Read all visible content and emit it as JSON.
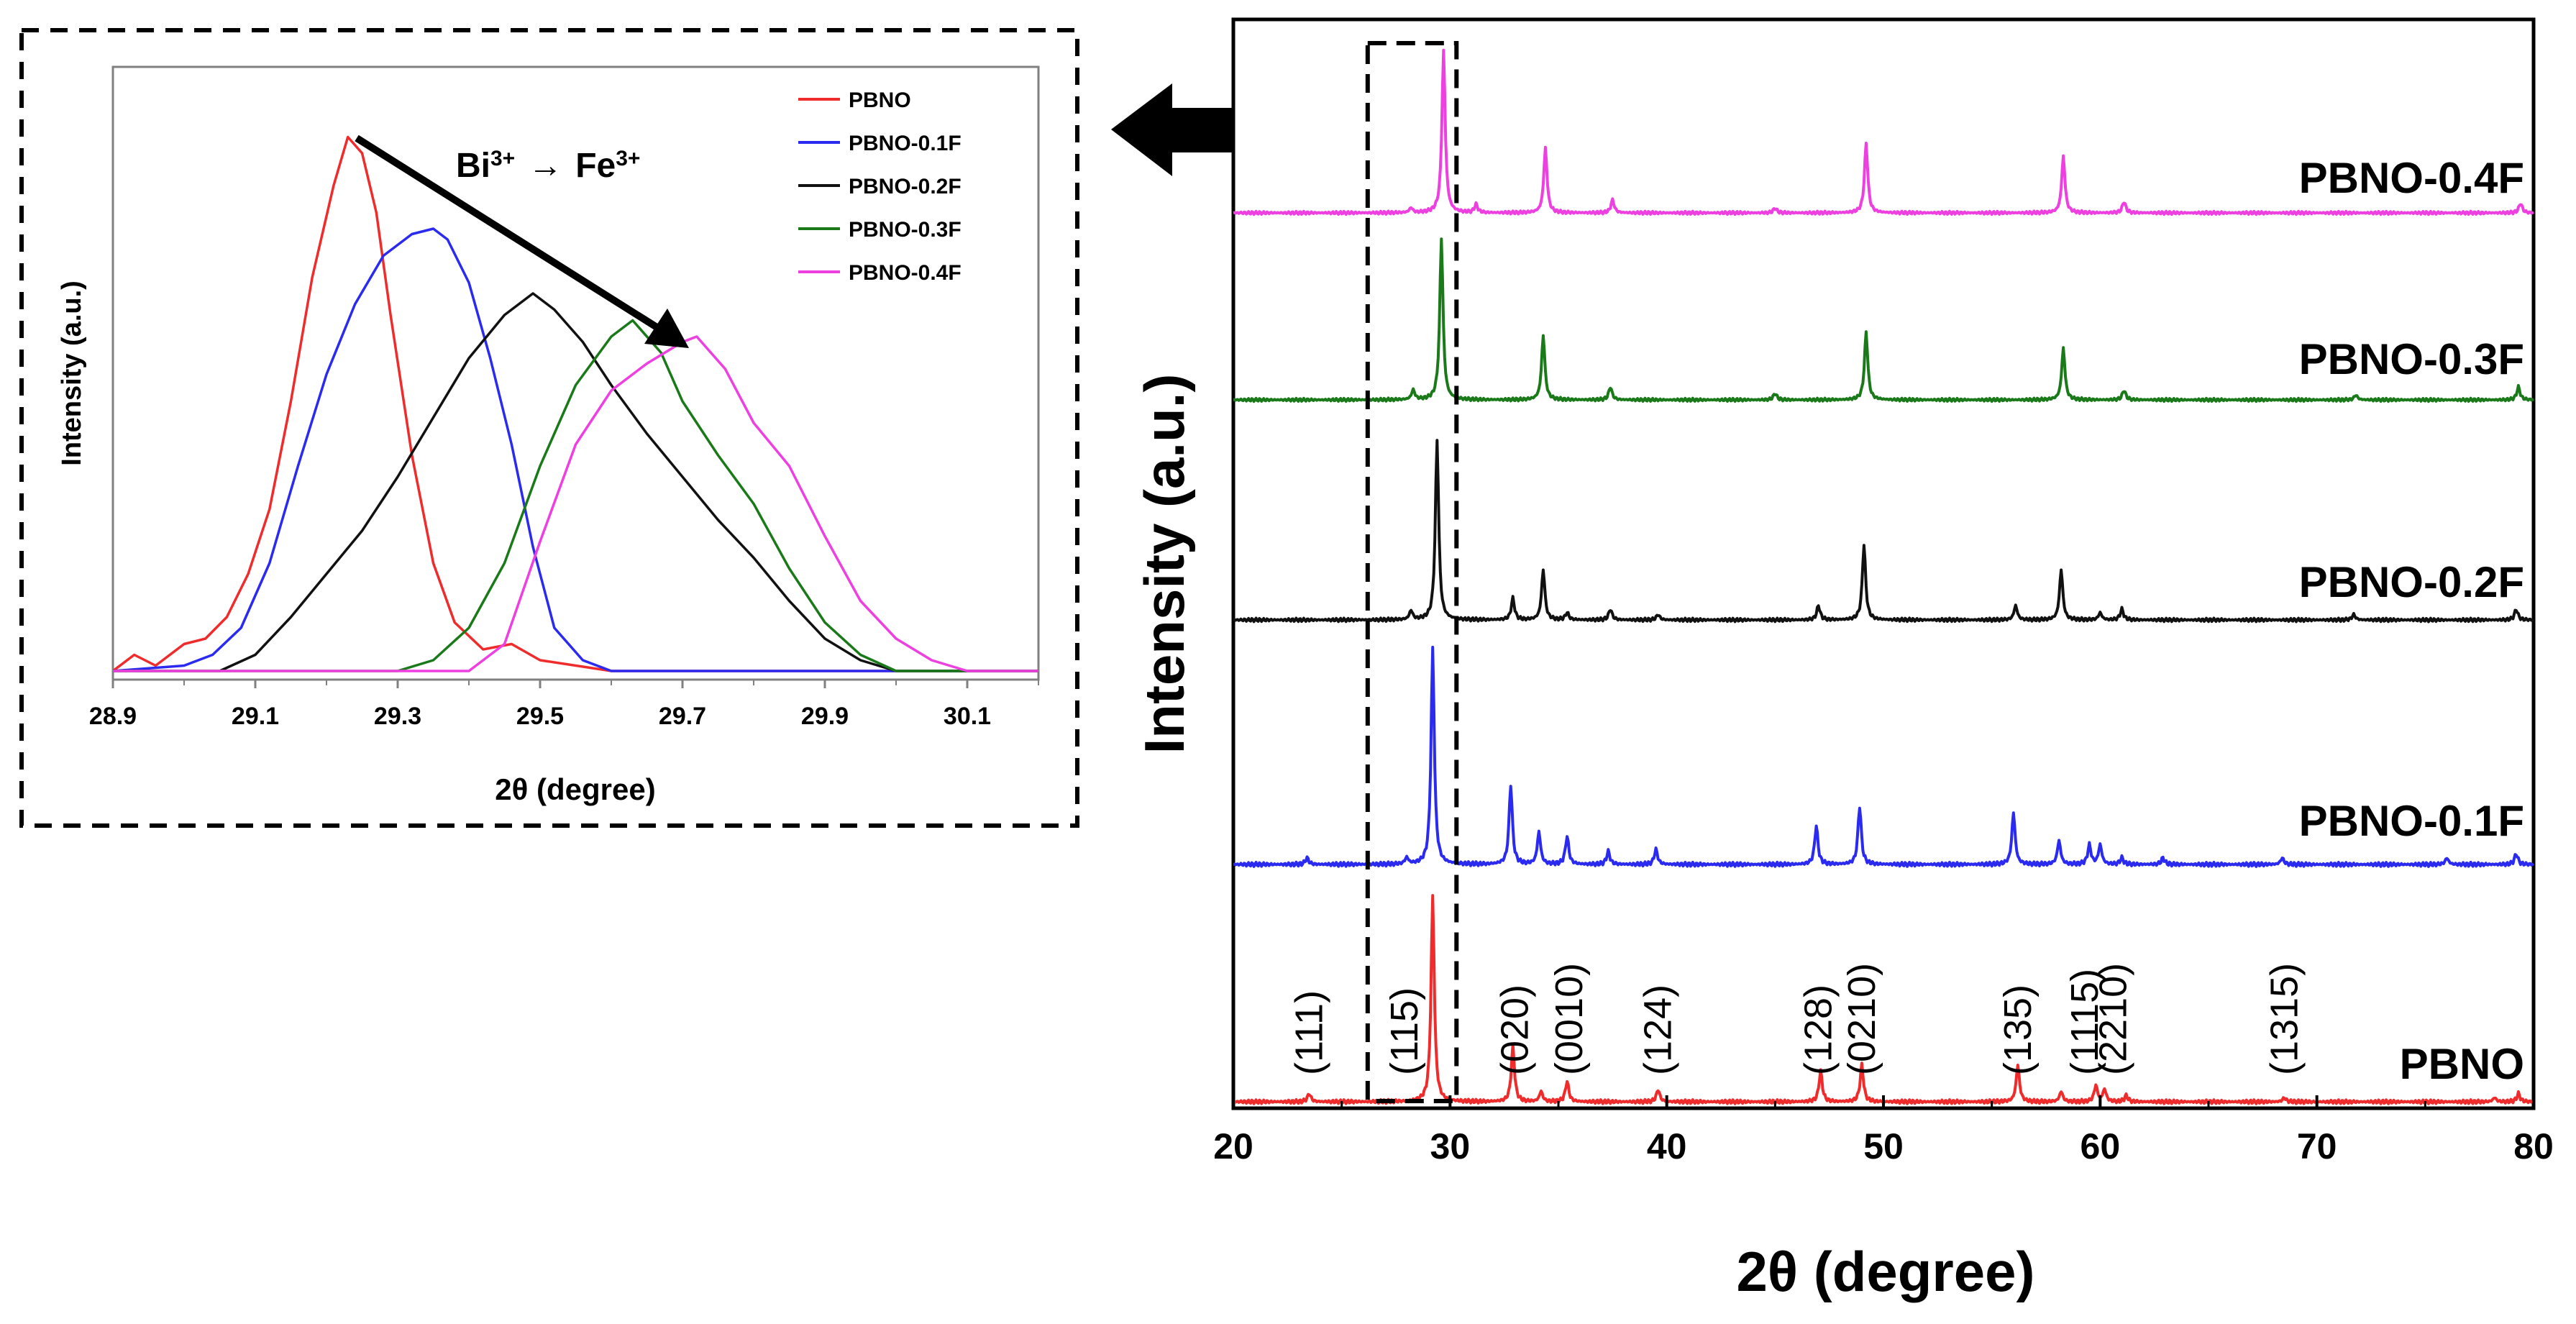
{
  "colors": {
    "PBNO": "#ef2b2b",
    "PBNO-0.1F": "#2a2af0",
    "PBNO-0.2F": "#111111",
    "PBNO-0.3F": "#1a7a1a",
    "PBNO-0.4F": "#ee3fe0",
    "frame": "#000000",
    "inset_axis": "#808080"
  },
  "chart_data": [
    {
      "id": "main",
      "type": "line",
      "title": "",
      "xlabel": "2θ (degree)",
      "ylabel": "Intensity (a.u.)",
      "xlim": [
        20,
        80
      ],
      "xticks": [
        20,
        30,
        40,
        50,
        60,
        70,
        80
      ],
      "y_ticks_shown": false,
      "series_labels": [
        "PBNO-0.4F",
        "PBNO-0.3F",
        "PBNO-0.2F",
        "PBNO-0.1F",
        "PBNO"
      ],
      "series_peaks": {
        "PBNO": [
          [
            23.5,
            0.04
          ],
          [
            29.2,
            1.0
          ],
          [
            32.9,
            0.27
          ],
          [
            34.2,
            0.05
          ],
          [
            35.4,
            0.1
          ],
          [
            39.6,
            0.06
          ],
          [
            47.1,
            0.15
          ],
          [
            49.0,
            0.18
          ],
          [
            56.2,
            0.18
          ],
          [
            58.2,
            0.05
          ],
          [
            59.8,
            0.08
          ],
          [
            60.2,
            0.06
          ],
          [
            61.2,
            0.03
          ],
          [
            68.5,
            0.02
          ],
          [
            78.2,
            0.02
          ],
          [
            79.3,
            0.04
          ]
        ],
        "PBNO-0.1F": [
          [
            23.4,
            0.03
          ],
          [
            28.0,
            0.03
          ],
          [
            29.2,
            1.0
          ],
          [
            32.8,
            0.37
          ],
          [
            34.1,
            0.15
          ],
          [
            35.4,
            0.13
          ],
          [
            37.3,
            0.06
          ],
          [
            39.5,
            0.07
          ],
          [
            46.9,
            0.18
          ],
          [
            48.9,
            0.27
          ],
          [
            56.0,
            0.24
          ],
          [
            58.1,
            0.11
          ],
          [
            59.5,
            0.09
          ],
          [
            60.0,
            0.09
          ],
          [
            61.0,
            0.03
          ],
          [
            62.9,
            0.03
          ],
          [
            68.4,
            0.03
          ],
          [
            76.0,
            0.03
          ],
          [
            79.2,
            0.05
          ]
        ],
        "PBNO-0.2F": [
          [
            28.2,
            0.05
          ],
          [
            29.4,
            1.0
          ],
          [
            32.9,
            0.12
          ],
          [
            34.3,
            0.28
          ],
          [
            35.4,
            0.04
          ],
          [
            37.4,
            0.06
          ],
          [
            39.6,
            0.03
          ],
          [
            47.0,
            0.08
          ],
          [
            49.1,
            0.42
          ],
          [
            56.1,
            0.08
          ],
          [
            58.2,
            0.28
          ],
          [
            60.0,
            0.04
          ],
          [
            61.0,
            0.06
          ],
          [
            71.7,
            0.03
          ],
          [
            79.2,
            0.06
          ]
        ],
        "PBNO-0.3F": [
          [
            28.3,
            0.06
          ],
          [
            29.6,
            1.0
          ],
          [
            34.3,
            0.4
          ],
          [
            37.4,
            0.08
          ],
          [
            45.0,
            0.04
          ],
          [
            49.2,
            0.42
          ],
          [
            58.3,
            0.32
          ],
          [
            61.1,
            0.06
          ],
          [
            71.8,
            0.03
          ],
          [
            79.3,
            0.08
          ]
        ],
        "PBNO-0.4F": [
          [
            28.2,
            0.03
          ],
          [
            29.7,
            1.0
          ],
          [
            31.2,
            0.05
          ],
          [
            34.4,
            0.4
          ],
          [
            37.5,
            0.08
          ],
          [
            45.0,
            0.03
          ],
          [
            49.2,
            0.43
          ],
          [
            58.3,
            0.35
          ],
          [
            61.1,
            0.07
          ],
          [
            79.4,
            0.06
          ]
        ]
      },
      "peak_labels": [
        {
          "text": "(111)",
          "x": 23.5
        },
        {
          "text": "(115)",
          "x": 27.9
        },
        {
          "text": "(020)",
          "x": 33.0
        },
        {
          "text": "(0010)",
          "x": 35.5
        },
        {
          "text": "(124)",
          "x": 39.6
        },
        {
          "text": "(128)",
          "x": 47.0
        },
        {
          "text": "(0210)",
          "x": 49.0
        },
        {
          "text": "(135)",
          "x": 56.2
        },
        {
          "text": "(1115)",
          "x": 59.3
        },
        {
          "text": "(2210)",
          "x": 60.6
        },
        {
          "text": "(1315)",
          "x": 68.5
        }
      ],
      "highlight_region": [
        26.2,
        30.3
      ]
    },
    {
      "id": "inset",
      "type": "line",
      "title": "",
      "xlabel": "2θ (degree)",
      "ylabel": "Intensity (a.u.)",
      "xlim": [
        28.9,
        30.2
      ],
      "xticks": [
        "28.9",
        "29.1",
        "29.3",
        "29.5",
        "29.7",
        "29.9",
        "30.1"
      ],
      "ylim": [
        0,
        1
      ],
      "legend": [
        "PBNO",
        "PBNO-0.1F",
        "PBNO-0.2F",
        "PBNO-0.3F",
        "PBNO-0.4F"
      ],
      "legend_position": "top-right",
      "annotation": {
        "from": "Bi",
        "to": "Fe",
        "charge": "3+",
        "arrow_glyph": "→"
      },
      "series": [
        {
          "name": "PBNO",
          "x": [
            28.9,
            28.93,
            28.96,
            29.0,
            29.03,
            29.06,
            29.09,
            29.12,
            29.15,
            29.18,
            29.21,
            29.23,
            29.25,
            29.27,
            29.29,
            29.32,
            29.35,
            29.38,
            29.42,
            29.46,
            29.5,
            29.6,
            30.2
          ],
          "y": [
            0.0,
            0.03,
            0.01,
            0.05,
            0.06,
            0.1,
            0.18,
            0.3,
            0.5,
            0.73,
            0.9,
            0.99,
            0.96,
            0.85,
            0.66,
            0.4,
            0.2,
            0.09,
            0.04,
            0.05,
            0.02,
            0.0,
            0.0
          ]
        },
        {
          "name": "PBNO-0.1F",
          "x": [
            28.9,
            29.0,
            29.04,
            29.08,
            29.12,
            29.16,
            29.2,
            29.24,
            29.28,
            29.32,
            29.35,
            29.37,
            29.4,
            29.43,
            29.46,
            29.49,
            29.52,
            29.56,
            29.6,
            30.2
          ],
          "y": [
            0.0,
            0.01,
            0.03,
            0.08,
            0.2,
            0.38,
            0.55,
            0.68,
            0.77,
            0.81,
            0.82,
            0.8,
            0.72,
            0.58,
            0.42,
            0.23,
            0.08,
            0.02,
            0.0,
            0.0
          ]
        },
        {
          "name": "PBNO-0.2F",
          "x": [
            28.9,
            29.05,
            29.1,
            29.15,
            29.2,
            29.25,
            29.3,
            29.35,
            29.4,
            29.45,
            29.49,
            29.52,
            29.56,
            29.6,
            29.65,
            29.7,
            29.75,
            29.8,
            29.85,
            29.9,
            29.95,
            30.0,
            30.2
          ],
          "y": [
            0.0,
            0.0,
            0.03,
            0.1,
            0.18,
            0.26,
            0.36,
            0.47,
            0.58,
            0.66,
            0.7,
            0.67,
            0.61,
            0.53,
            0.44,
            0.36,
            0.28,
            0.21,
            0.13,
            0.06,
            0.02,
            0.0,
            0.0
          ]
        },
        {
          "name": "PBNO-0.3F",
          "x": [
            28.9,
            29.3,
            29.35,
            29.4,
            29.45,
            29.5,
            29.55,
            29.6,
            29.63,
            29.67,
            29.7,
            29.75,
            29.8,
            29.85,
            29.9,
            29.95,
            30.0,
            30.2
          ],
          "y": [
            0.0,
            0.0,
            0.02,
            0.08,
            0.2,
            0.38,
            0.53,
            0.62,
            0.65,
            0.59,
            0.5,
            0.4,
            0.31,
            0.19,
            0.09,
            0.03,
            0.0,
            0.0
          ]
        },
        {
          "name": "PBNO-0.4F",
          "x": [
            28.9,
            29.4,
            29.45,
            29.5,
            29.55,
            29.6,
            29.65,
            29.7,
            29.72,
            29.76,
            29.8,
            29.85,
            29.9,
            29.95,
            30.0,
            30.05,
            30.1,
            30.2
          ],
          "y": [
            0.0,
            0.0,
            0.05,
            0.24,
            0.42,
            0.52,
            0.57,
            0.61,
            0.62,
            0.56,
            0.46,
            0.38,
            0.25,
            0.13,
            0.06,
            0.02,
            0.0,
            0.0
          ]
        }
      ]
    }
  ]
}
